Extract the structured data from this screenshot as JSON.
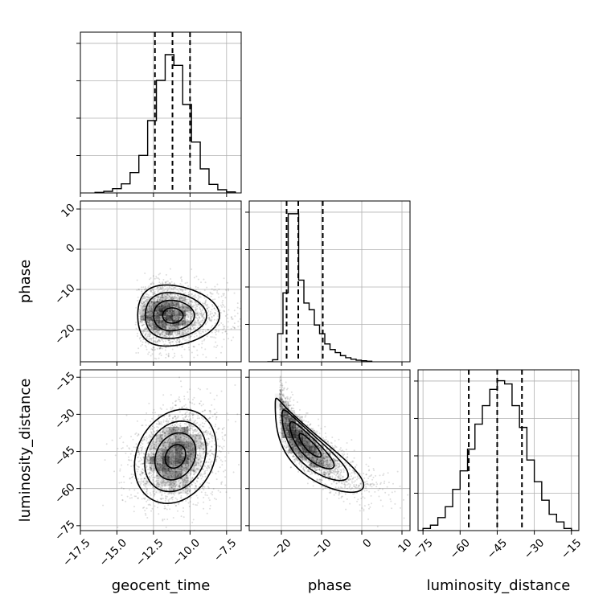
{
  "chart_data": {
    "type": "scatter",
    "subtype": "corner-plot",
    "grid": true,
    "parameters": [
      {
        "name": "geocent_time",
        "range": [
          -17.5,
          -6.5
        ],
        "ticks": [
          -17.5,
          -15.0,
          -12.5,
          -10.0,
          -7.5
        ],
        "tick_labels": [
          "−17.5",
          "−15.0",
          "−12.5",
          "−10.0",
          "−7.5"
        ]
      },
      {
        "name": "phase",
        "range": [
          -28,
          12
        ],
        "ticks": [
          -20,
          -10,
          0,
          10
        ],
        "tick_labels": [
          "−20",
          "−10",
          "0",
          "10"
        ]
      },
      {
        "name": "luminosity_distance",
        "range": [
          -77,
          -12
        ],
        "ticks": [
          -75,
          -60,
          -45,
          -30,
          -15
        ],
        "tick_labels": [
          "−75",
          "−60",
          "−45",
          "−30",
          "−15"
        ]
      }
    ],
    "histograms": [
      {
        "parameter": "geocent_time",
        "bin_edges": [
          -16.5,
          -15.9,
          -15.3,
          -14.7,
          -14.1,
          -13.5,
          -12.9,
          -12.3,
          -11.7,
          -11.1,
          -10.5,
          -9.9,
          -9.3,
          -8.7,
          -8.1,
          -7.5,
          -6.9
        ],
        "counts": [
          1,
          3,
          8,
          17,
          38,
          70,
          135,
          210,
          258,
          238,
          165,
          95,
          45,
          16,
          6,
          2
        ],
        "ylim": [
          0,
          300
        ],
        "quantiles": [
          -12.4,
          -11.2,
          -10.0
        ]
      },
      {
        "parameter": "phase",
        "bin_edges": [
          -23.5,
          -22.2,
          -20.9,
          -19.6,
          -18.3,
          -17.0,
          -15.7,
          -14.4,
          -13.1,
          -11.8,
          -10.5,
          -9.2,
          -7.9,
          -6.6,
          -5.3,
          -4.0,
          -2.7,
          -1.4,
          -0.1,
          1.2,
          2.5
        ],
        "counts": [
          0,
          4,
          55,
          135,
          290,
          290,
          160,
          115,
          102,
          72,
          55,
          35,
          24,
          18,
          12,
          8,
          5,
          3,
          2,
          1
        ],
        "ylim": [
          0,
          315
        ],
        "quantiles": [
          -18.7,
          -15.8,
          -9.7
        ]
      },
      {
        "parameter": "luminosity_distance",
        "bin_edges": [
          -78,
          -75,
          -72,
          -69,
          -66,
          -63,
          -60,
          -57,
          -54,
          -51,
          -48,
          -45,
          -42,
          -39,
          -36,
          -33,
          -30,
          -27,
          -24,
          -21,
          -18,
          -15,
          -12
        ],
        "counts": [
          0,
          2,
          5,
          12,
          22,
          38,
          55,
          75,
          98,
          115,
          130,
          138,
          135,
          115,
          95,
          65,
          45,
          28,
          15,
          8,
          2,
          0
        ],
        "ylim": [
          0,
          148
        ],
        "quantiles": [
          -56.5,
          -45.0,
          -35.0
        ]
      }
    ],
    "scatter_2d": [
      {
        "x": "geocent_time",
        "y": "phase",
        "mean": [
          -11.2,
          -16.5
        ],
        "sd": [
          1.4,
          3.8
        ],
        "rho": 0.0,
        "skew": 0.3
      },
      {
        "x": "geocent_time",
        "y": "luminosity_distance",
        "mean": [
          -11.0,
          -47.0
        ],
        "sd": [
          1.4,
          9.5
        ],
        "rho": 0.2,
        "skew": 0.0
      },
      {
        "x": "phase",
        "y": "luminosity_distance",
        "mean": [
          -13.0,
          -42.5
        ],
        "sd": [
          5.5,
          9.5
        ],
        "rho": -0.85,
        "skew": 0.45
      }
    ],
    "contour_levels_sigma": [
      0.5,
      1.0,
      1.5,
      2.0
    ]
  },
  "colors": {
    "axes": "#000000",
    "grid": "#b0b0b0",
    "points": "#000000",
    "hist": "#000000",
    "density_max": "#000000"
  }
}
